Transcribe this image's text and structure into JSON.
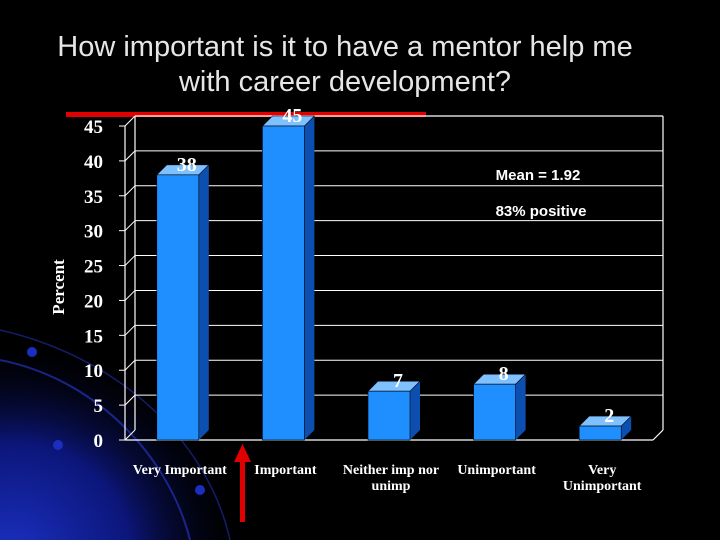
{
  "slide": {
    "title_line1": "How important is it to have a mentor help me",
    "title_line2": "with career development?"
  },
  "chart_data": {
    "type": "bar",
    "title": "How important is it to have a mentor help me with career development?",
    "ylabel": "Percent",
    "xlabel": "",
    "categories": [
      "Very Important",
      "Important",
      "Neither imp nor unimp",
      "Unimportant",
      "Very Unimportant"
    ],
    "category_labels": [
      [
        "Very Important"
      ],
      [
        "Important"
      ],
      [
        "Neither imp nor",
        "unimp"
      ],
      [
        "Unimportant"
      ],
      [
        "Very",
        "Unimportant"
      ]
    ],
    "values": [
      38,
      45,
      7,
      8,
      2
    ],
    "ylim": [
      0,
      45
    ],
    "yticks": [
      0,
      5,
      10,
      15,
      20,
      25,
      30,
      35,
      40,
      45
    ],
    "grid": true,
    "annotations": [
      "Mean = 1.92",
      "83% positive"
    ],
    "colors": {
      "bar_front": "#1f8fff",
      "bar_side": "#0d4fb0",
      "bar_top": "#7fc0ff",
      "text": "#ffffff",
      "accent": "#e00000"
    }
  }
}
